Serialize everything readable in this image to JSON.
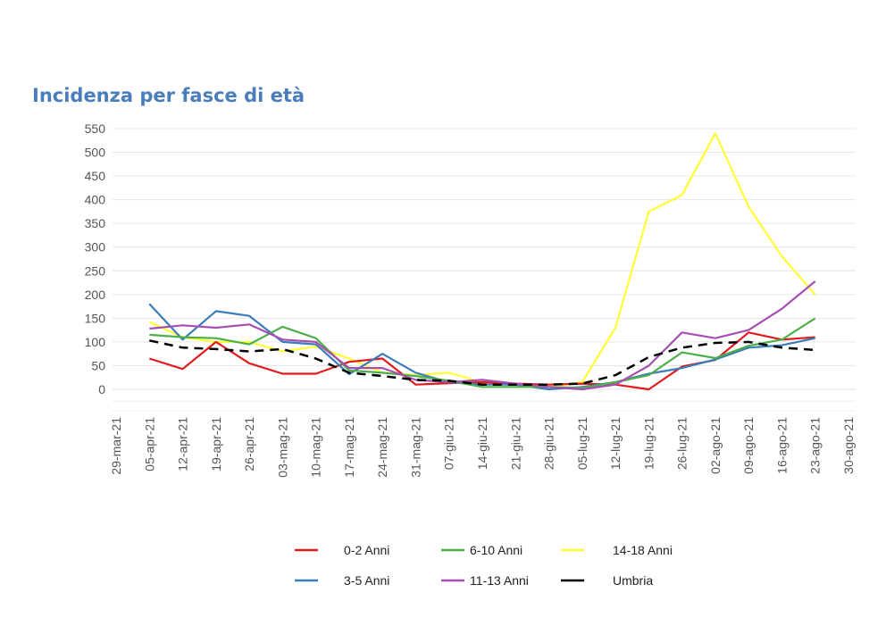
{
  "chart_data": {
    "type": "line",
    "title": "Incidenza per fasce di età",
    "xlabel": "",
    "ylabel": "",
    "ylim": [
      0,
      550
    ],
    "yticks": [
      0,
      50,
      100,
      150,
      200,
      250,
      300,
      350,
      400,
      450,
      500,
      550
    ],
    "grid": true,
    "legend_position": "bottom",
    "x": [
      "2021-03-29",
      "2021-04-05",
      "2021-04-12",
      "2021-04-19",
      "2021-04-26",
      "2021-05-03",
      "2021-05-10",
      "2021-05-17",
      "2021-05-24",
      "2021-05-31",
      "2021-06-07",
      "2021-06-14",
      "2021-06-21",
      "2021-06-28",
      "2021-07-05",
      "2021-07-12",
      "2021-07-19",
      "2021-07-26",
      "2021-08-02",
      "2021-08-09",
      "2021-08-16",
      "2021-08-23",
      "2021-08-30"
    ],
    "x_tick_labels": [
      "29-mar-21",
      "05-apr-21",
      "12-apr-21",
      "19-apr-21",
      "26-apr-21",
      "03-mag-21",
      "10-mag-21",
      "17-mag-21",
      "24-mag-21",
      "31-mag-21",
      "07-giu-21",
      "14-giu-21",
      "21-giu-21",
      "28-giu-21",
      "05-lug-21",
      "12-lug-21",
      "19-lug-21",
      "26-lug-21",
      "02-ago-21",
      "09-ago-21",
      "16-ago-21",
      "23-ago-21",
      "30-ago-21"
    ],
    "series": [
      {
        "name": "0-2 Anni",
        "color": "#e31a1c",
        "dash": false,
        "x": [
          "2021-04-05",
          "2021-04-12",
          "2021-04-19",
          "2021-04-26",
          "2021-05-03",
          "2021-05-10",
          "2021-05-17",
          "2021-05-24",
          "2021-05-31",
          "2021-06-07",
          "2021-06-14",
          "2021-06-21",
          "2021-06-28",
          "2021-07-05",
          "2021-07-12",
          "2021-07-19",
          "2021-07-26",
          "2021-08-02",
          "2021-08-09",
          "2021-08-16",
          "2021-08-23"
        ],
        "values": [
          65,
          43,
          100,
          55,
          33,
          33,
          58,
          65,
          10,
          13,
          15,
          12,
          10,
          12,
          10,
          0,
          48,
          62,
          120,
          105,
          110
        ]
      },
      {
        "name": "3-5 Anni",
        "color": "#3a7dbb",
        "dash": false,
        "x": [
          "2021-04-05",
          "2021-04-12",
          "2021-04-19",
          "2021-04-26",
          "2021-05-03",
          "2021-05-10",
          "2021-05-17",
          "2021-05-24",
          "2021-05-31",
          "2021-06-07",
          "2021-06-14",
          "2021-06-21",
          "2021-06-28",
          "2021-07-05",
          "2021-07-12",
          "2021-07-19",
          "2021-07-26",
          "2021-08-02",
          "2021-08-09",
          "2021-08-16",
          "2021-08-23"
        ],
        "values": [
          180,
          105,
          165,
          155,
          100,
          95,
          32,
          75,
          35,
          15,
          10,
          10,
          0,
          5,
          15,
          33,
          45,
          63,
          88,
          93,
          108
        ]
      },
      {
        "name": "6-10 Anni",
        "color": "#4daf4a",
        "dash": false,
        "x": [
          "2021-04-05",
          "2021-04-12",
          "2021-04-19",
          "2021-04-26",
          "2021-05-03",
          "2021-05-10",
          "2021-05-17",
          "2021-05-24",
          "2021-05-31",
          "2021-06-07",
          "2021-06-14",
          "2021-06-21",
          "2021-06-28",
          "2021-07-05",
          "2021-07-12",
          "2021-07-19",
          "2021-07-26",
          "2021-08-02",
          "2021-08-09",
          "2021-08-16",
          "2021-08-23"
        ],
        "values": [
          115,
          110,
          108,
          95,
          132,
          108,
          40,
          35,
          28,
          18,
          5,
          5,
          5,
          3,
          15,
          30,
          78,
          66,
          92,
          105,
          150
        ]
      },
      {
        "name": "11-13 Anni",
        "color": "#a64fb3",
        "dash": false,
        "x": [
          "2021-04-05",
          "2021-04-12",
          "2021-04-19",
          "2021-04-26",
          "2021-05-03",
          "2021-05-10",
          "2021-05-17",
          "2021-05-24",
          "2021-05-31",
          "2021-06-07",
          "2021-06-14",
          "2021-06-21",
          "2021-06-28",
          "2021-07-05",
          "2021-07-12",
          "2021-07-19",
          "2021-07-26",
          "2021-08-02",
          "2021-08-09",
          "2021-08-16",
          "2021-08-23"
        ],
        "values": [
          128,
          135,
          130,
          137,
          105,
          100,
          45,
          45,
          20,
          15,
          20,
          12,
          5,
          0,
          10,
          50,
          120,
          108,
          125,
          170,
          228
        ]
      },
      {
        "name": "14-18 Anni",
        "color": "#ffff33",
        "dash": false,
        "x": [
          "2021-04-05",
          "2021-04-12",
          "2021-04-19",
          "2021-04-26",
          "2021-05-03",
          "2021-05-10",
          "2021-05-17",
          "2021-05-24",
          "2021-05-31",
          "2021-06-07",
          "2021-06-14",
          "2021-06-21",
          "2021-06-28",
          "2021-07-05",
          "2021-07-12",
          "2021-07-19",
          "2021-07-26",
          "2021-08-02",
          "2021-08-09",
          "2021-08-16",
          "2021-08-23"
        ],
        "values": [
          142,
          110,
          100,
          100,
          80,
          90,
          65,
          35,
          30,
          35,
          15,
          10,
          5,
          15,
          130,
          375,
          410,
          540,
          385,
          280,
          200
        ]
      },
      {
        "name": "Umbria",
        "color": "#000000",
        "dash": true,
        "x": [
          "2021-04-05",
          "2021-04-12",
          "2021-04-19",
          "2021-04-26",
          "2021-05-03",
          "2021-05-10",
          "2021-05-17",
          "2021-05-24",
          "2021-05-31",
          "2021-06-07",
          "2021-06-14",
          "2021-06-21",
          "2021-06-28",
          "2021-07-05",
          "2021-07-12",
          "2021-07-19",
          "2021-07-26",
          "2021-08-02",
          "2021-08-09",
          "2021-08-16",
          "2021-08-23"
        ],
        "values": [
          103,
          88,
          85,
          80,
          85,
          65,
          35,
          28,
          20,
          18,
          10,
          10,
          10,
          12,
          30,
          68,
          88,
          98,
          100,
          88,
          83
        ]
      }
    ],
    "legend_rows": [
      [
        "0-2 Anni",
        "6-10 Anni",
        "14-18 Anni"
      ],
      [
        "3-5 Anni",
        "11-13 Anni",
        "Umbria"
      ]
    ]
  }
}
